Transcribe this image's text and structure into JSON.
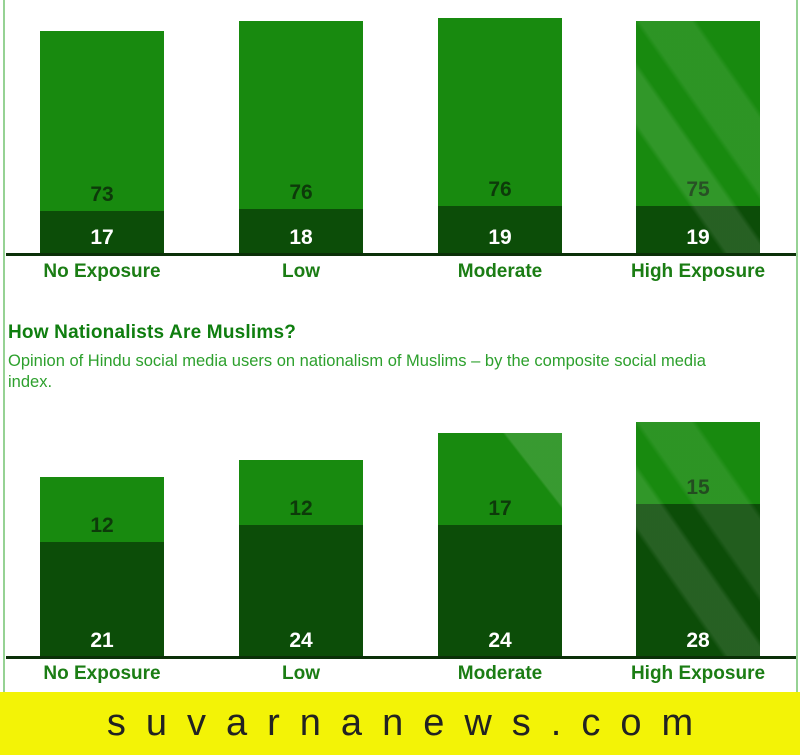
{
  "banner": {
    "text": "suvarnanews.com",
    "bg_color": "#f3f306",
    "text_color": "#222222"
  },
  "colors": {
    "background": "#ffffff",
    "bar_light": "#188a0f",
    "bar_dark": "#0c4d08",
    "axis": "#0b3008",
    "value_on_light": "#0d3a0a",
    "value_on_dark": "#ffffff",
    "category_label": "#1b7d14",
    "title": "#0f7e0f",
    "subtitle": "#2da02d",
    "frame_border": "#96d294"
  },
  "chart_data": [
    {
      "type": "bar",
      "stacked": true,
      "categories": [
        "No Exposure",
        "Low",
        "Moderate",
        "High Exposure"
      ],
      "series": [
        {
          "name": "bottom-dark-segment",
          "values": [
            17,
            18,
            19,
            19
          ]
        },
        {
          "name": "top-light-segment",
          "values": [
            73,
            76,
            76,
            75
          ]
        }
      ],
      "xlabel": "",
      "ylabel": "",
      "legend": "none",
      "grid": false
    },
    {
      "type": "bar",
      "stacked": true,
      "title": "How Nationalists Are Muslims?",
      "subtitle": "Opinion of Hindu social media users on nationalism of Muslims – by the composite social media index.",
      "categories": [
        "No Exposure",
        "Low",
        "Moderate",
        "High Exposure"
      ],
      "series": [
        {
          "name": "bottom-dark-segment",
          "values": [
            21,
            24,
            24,
            28
          ]
        },
        {
          "name": "top-light-segment",
          "values": [
            12,
            12,
            17,
            15
          ]
        }
      ],
      "xlabel": "",
      "ylabel": "",
      "legend": "none",
      "grid": false
    }
  ]
}
